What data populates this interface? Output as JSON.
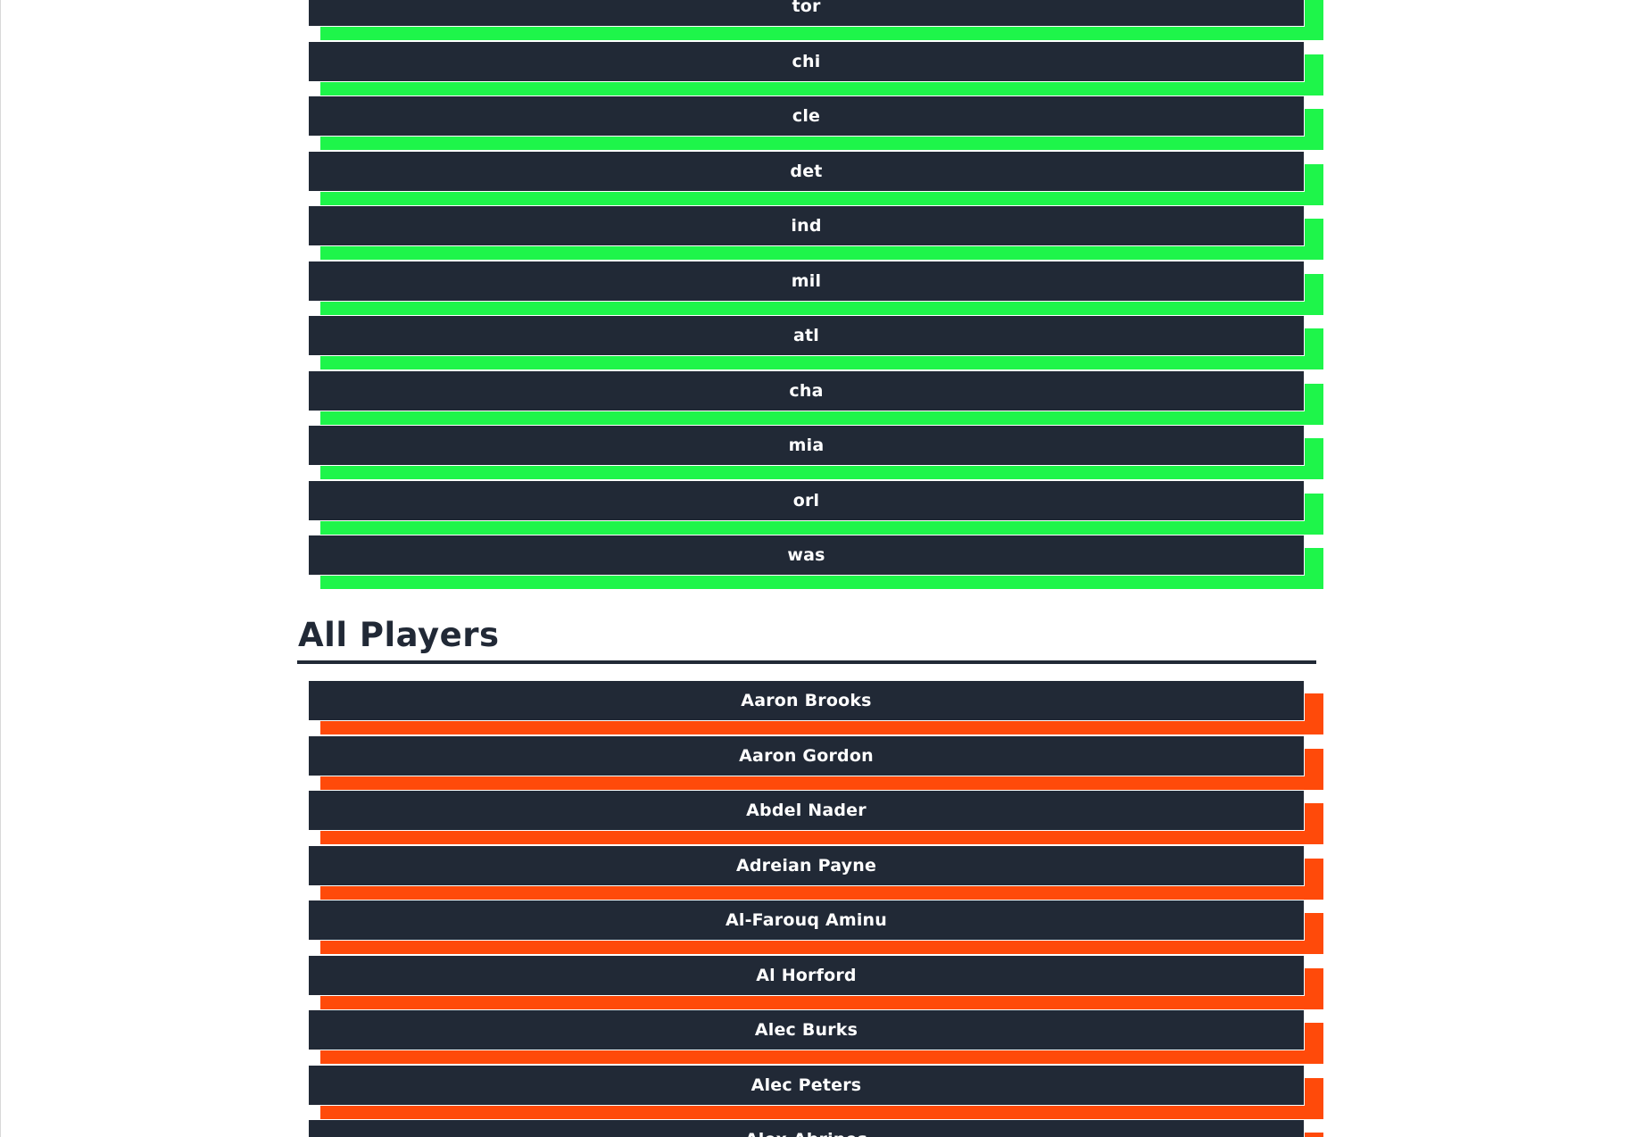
{
  "teams": {
    "items": [
      "tor",
      "chi",
      "cle",
      "det",
      "ind",
      "mil",
      "atl",
      "cha",
      "mia",
      "orl",
      "was"
    ],
    "shadow_color": "#1ef54a"
  },
  "players_section": {
    "title": "All Players",
    "items": [
      "Aaron Brooks",
      "Aaron Gordon",
      "Abdel Nader",
      "Adreian Payne",
      "Al-Farouq Aminu",
      "Al Horford",
      "Alec Burks",
      "Alec Peters",
      "Alex Abrines"
    ],
    "shadow_color": "#ff4a0a"
  },
  "theme": {
    "button_bg": "#212936",
    "button_text": "#ffffff",
    "heading_color": "#212936"
  }
}
